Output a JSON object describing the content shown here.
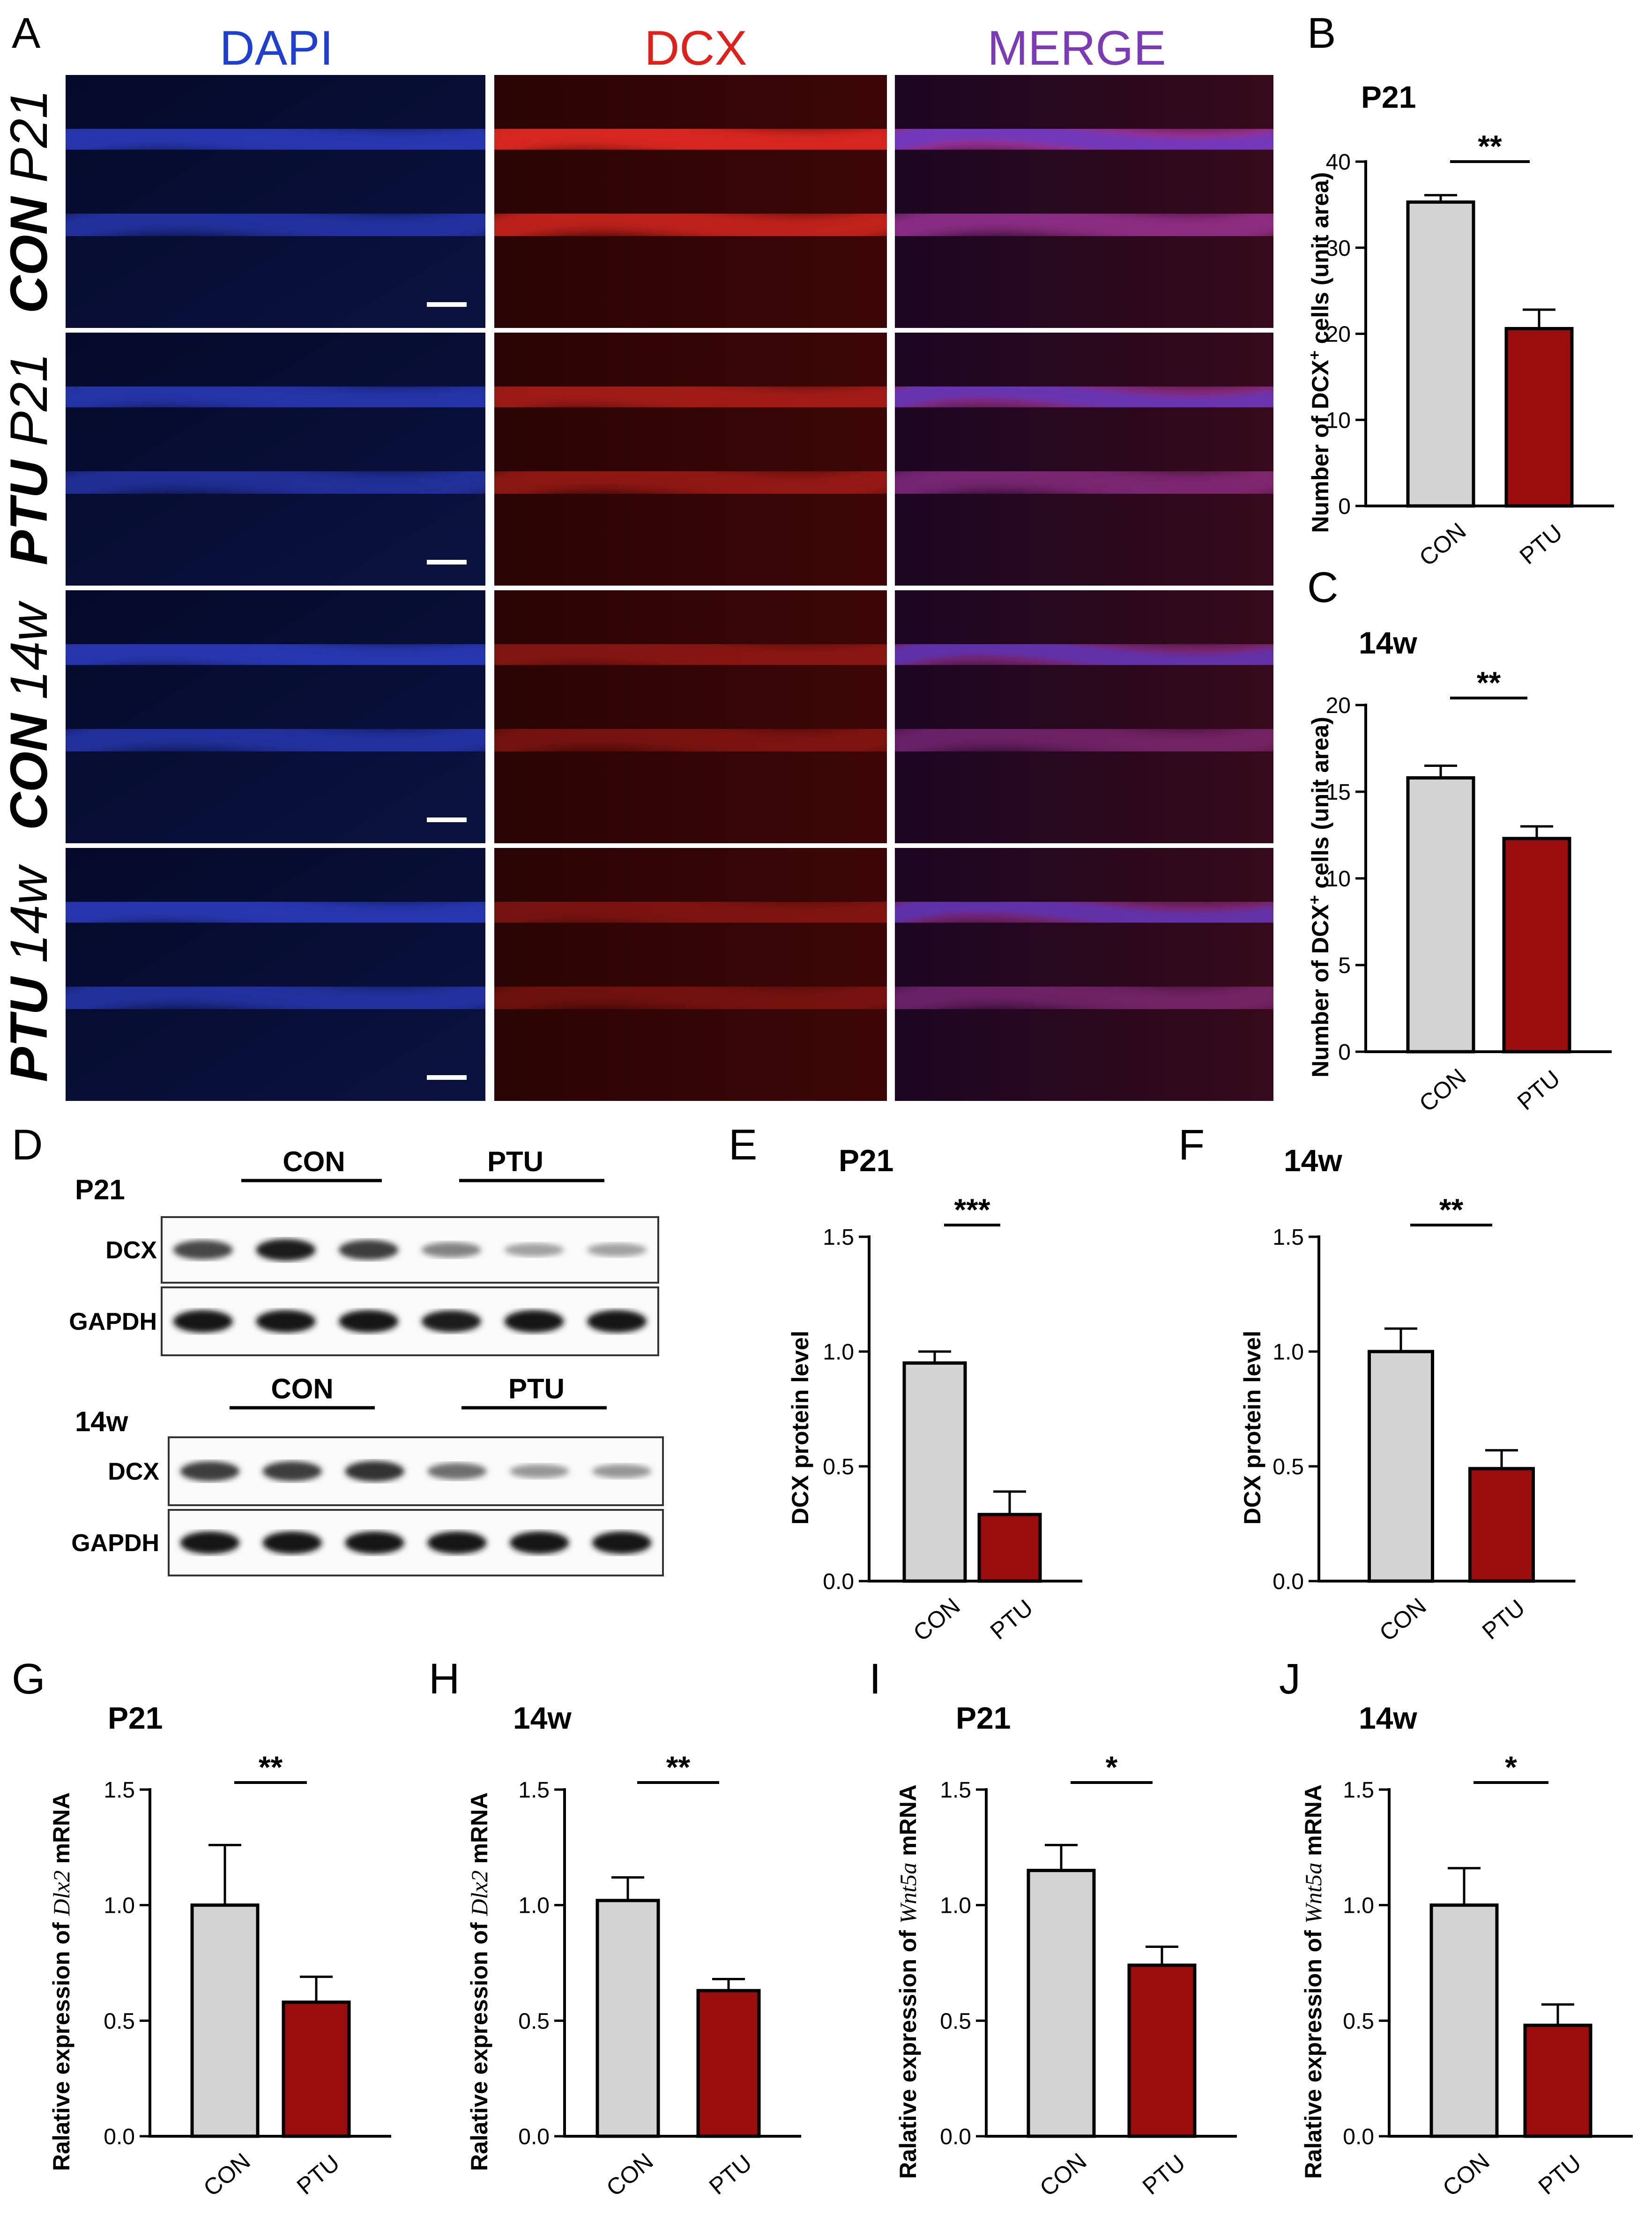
{
  "panel_letters": {
    "A": "A",
    "B": "B",
    "C": "C",
    "D": "D",
    "E": "E",
    "F": "F",
    "G": "G",
    "H": "H",
    "I": "I",
    "J": "J"
  },
  "colors": {
    "dapi": "#1f3fd0",
    "dcx": "#e0201a",
    "merge": "#7a3bb4",
    "con_bar": "#d3d3d3",
    "ptu_bar": "#9b0d0d",
    "axis": "#000000"
  },
  "micrographs": {
    "column_headers": [
      "DAPI",
      "DCX",
      "MERGE"
    ],
    "rows": [
      {
        "time": "P21",
        "group": "CON"
      },
      {
        "time": "P21",
        "group": "PTU"
      },
      {
        "time": "14w",
        "group": "CON"
      },
      {
        "time": "14w",
        "group": "PTU"
      }
    ]
  },
  "western_blot": {
    "blocks": [
      {
        "time": "P21",
        "groups": [
          "CON",
          "PTU"
        ],
        "rows": [
          "DCX",
          "GAPDH"
        ],
        "band_intensity": {
          "DCX": [
            0.75,
            0.95,
            0.8,
            0.45,
            0.3,
            0.3
          ],
          "GAPDH": [
            1,
            1,
            1,
            0.95,
            1,
            1
          ]
        }
      },
      {
        "time": "14w",
        "groups": [
          "CON",
          "PTU"
        ],
        "rows": [
          "DCX",
          "GAPDH"
        ],
        "band_intensity": {
          "DCX": [
            0.8,
            0.8,
            0.85,
            0.55,
            0.35,
            0.35
          ],
          "GAPDH": [
            1,
            1,
            1,
            1,
            1,
            1
          ]
        }
      }
    ]
  },
  "chart_data": [
    {
      "id": "B",
      "type": "bar",
      "title": "P21",
      "ylabel": "Number of DCX⁺ cells (unit area)",
      "categories": [
        "CON",
        "PTU"
      ],
      "values": [
        35.3,
        20.6
      ],
      "errors": [
        0.8,
        2.2
      ],
      "ylim": [
        0,
        40
      ],
      "yticks": [
        "0",
        "10",
        "20",
        "30",
        "40"
      ],
      "significance": "**"
    },
    {
      "id": "C",
      "type": "bar",
      "title": "14w",
      "ylabel": "Number of DCX⁺ cells (unit area)",
      "categories": [
        "CON",
        "PTU"
      ],
      "values": [
        15.8,
        12.3
      ],
      "errors": [
        0.7,
        0.7
      ],
      "ylim": [
        0,
        20
      ],
      "yticks": [
        "0",
        "5",
        "10",
        "15",
        "20"
      ],
      "significance": "**"
    },
    {
      "id": "E",
      "type": "bar",
      "title": "P21",
      "ylabel": "DCX protein level",
      "categories": [
        "CON",
        "PTU"
      ],
      "values": [
        0.95,
        0.29
      ],
      "errors": [
        0.05,
        0.1
      ],
      "ylim": [
        0,
        1.5
      ],
      "yticks": [
        "0.0",
        "0.5",
        "1.0",
        "1.5"
      ],
      "significance": "***"
    },
    {
      "id": "F",
      "type": "bar",
      "title": "14w",
      "ylabel": "DCX protein level",
      "categories": [
        "CON",
        "PTU"
      ],
      "values": [
        1.0,
        0.49
      ],
      "errors": [
        0.1,
        0.08
      ],
      "ylim": [
        0,
        1.5
      ],
      "yticks": [
        "0.0",
        "0.5",
        "1.0",
        "1.5"
      ],
      "significance": "**"
    },
    {
      "id": "G",
      "type": "bar",
      "title": "P21",
      "ylabel": "Ralative expression of Dlx2 mRNA",
      "gene": "Dlx2",
      "categories": [
        "CON",
        "PTU"
      ],
      "values": [
        1.0,
        0.58
      ],
      "errors": [
        0.26,
        0.11
      ],
      "ylim": [
        0,
        1.5
      ],
      "yticks": [
        "0.0",
        "0.5",
        "1.0",
        "1.5"
      ],
      "significance": "**"
    },
    {
      "id": "H",
      "type": "bar",
      "title": "14w",
      "ylabel": "Ralative expression of Dlx2 mRNA",
      "gene": "Dlx2",
      "categories": [
        "CON",
        "PTU"
      ],
      "values": [
        1.02,
        0.63
      ],
      "errors": [
        0.1,
        0.05
      ],
      "ylim": [
        0,
        1.5
      ],
      "yticks": [
        "0.0",
        "0.5",
        "1.0",
        "1.5"
      ],
      "significance": "**"
    },
    {
      "id": "I",
      "type": "bar",
      "title": "P21",
      "ylabel": "Ralative expression of Wnt5a mRNA",
      "gene": "Wnt5a",
      "categories": [
        "CON",
        "PTU"
      ],
      "values": [
        1.15,
        0.74
      ],
      "errors": [
        0.11,
        0.08
      ],
      "ylim": [
        0,
        1.5
      ],
      "yticks": [
        "0.0",
        "0.5",
        "1.0",
        "1.5"
      ],
      "significance": "*"
    },
    {
      "id": "J",
      "type": "bar",
      "title": "14w",
      "ylabel": "Ralative expression of Wnt5a mRNA",
      "gene": "Wnt5a",
      "categories": [
        "CON",
        "PTU"
      ],
      "values": [
        1.0,
        0.48
      ],
      "errors": [
        0.16,
        0.09
      ],
      "ylim": [
        0,
        1.5
      ],
      "yticks": [
        "0.0",
        "0.5",
        "1.0",
        "1.5"
      ],
      "significance": "*"
    }
  ]
}
